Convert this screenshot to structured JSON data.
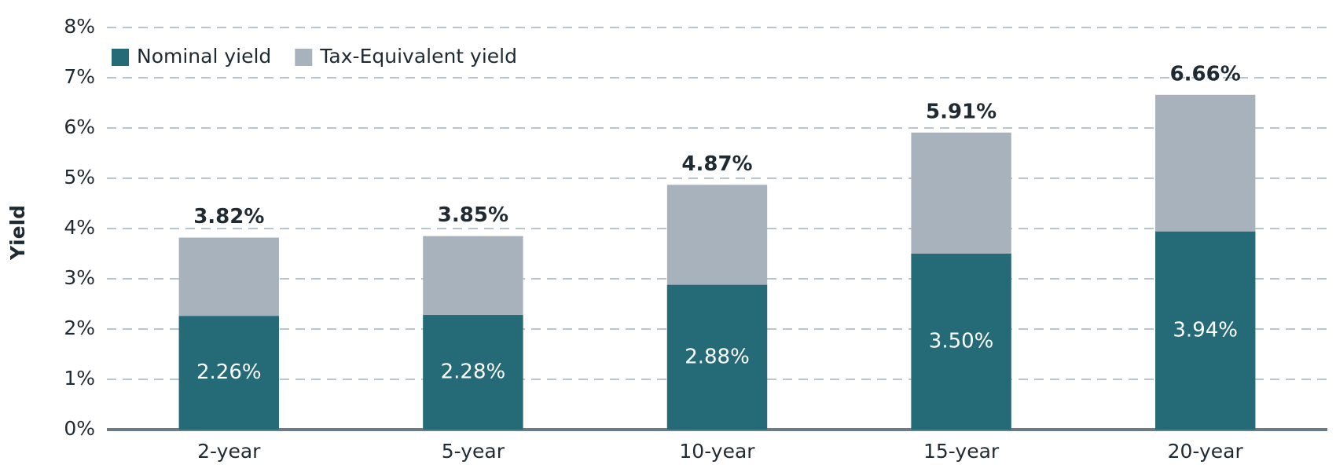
{
  "chart_data": {
    "type": "bar",
    "mode": "overlap",
    "y_label": "Yield",
    "categories": [
      "2-year",
      "5-year",
      "10-year",
      "15-year",
      "20-year"
    ],
    "series": [
      {
        "name": "Tax-Equivalent yield",
        "color": "#a8b2bc",
        "values": [
          3.82,
          3.85,
          4.87,
          5.91,
          6.66
        ],
        "value_labels": [
          "3.82%",
          "3.85%",
          "4.87%",
          "5.91%",
          "6.66%"
        ]
      },
      {
        "name": "Nominal yield",
        "color": "#256a77",
        "values": [
          2.26,
          2.28,
          2.88,
          3.5,
          3.94
        ],
        "value_labels": [
          "2.26%",
          "2.28%",
          "2.88%",
          "3.50%",
          "3.94%"
        ]
      }
    ],
    "ylim": [
      0,
      8
    ],
    "yticks": [
      {
        "value": 0,
        "label": "0%"
      },
      {
        "value": 1,
        "label": "1%"
      },
      {
        "value": 2,
        "label": "2%"
      },
      {
        "value": 3,
        "label": "3%"
      },
      {
        "value": 4,
        "label": "4%"
      },
      {
        "value": 5,
        "label": "5%"
      },
      {
        "value": 6,
        "label": "6%"
      },
      {
        "value": 7,
        "label": "7%"
      },
      {
        "value": 8,
        "label": "8%"
      }
    ],
    "grid": true,
    "legend": "upper left"
  }
}
